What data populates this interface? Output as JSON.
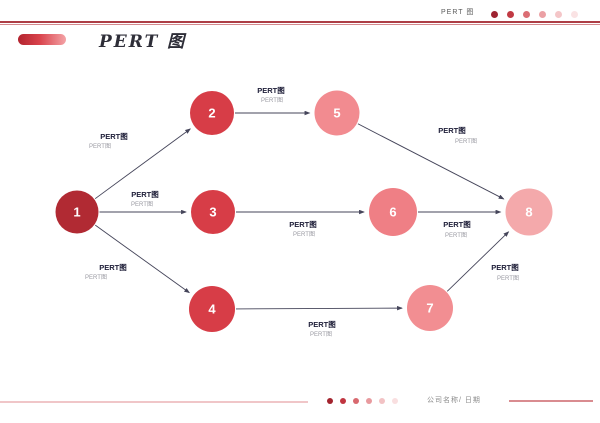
{
  "header": {
    "title": "PERT 图",
    "dot_colors": [
      "#9e2431",
      "#c13a43",
      "#db6e74",
      "#eba0a4",
      "#f4c6c8",
      "#fae3e4"
    ]
  },
  "title": {
    "text": "PERT 图"
  },
  "footer": {
    "company_label": "公司名称/ 日期",
    "dot_colors": [
      "#a3242e",
      "#c03540",
      "#d8696f",
      "#e89a9e",
      "#f2c2c4",
      "#f9dfe0"
    ]
  },
  "diagram": {
    "type": "pert-network",
    "edge_color": "#45455a",
    "label_color": "#20203a",
    "sublabel_color": "#9a9aa2",
    "nodes": [
      {
        "id": "1",
        "label": "1",
        "color": "#b12a33"
      },
      {
        "id": "2",
        "label": "2",
        "color": "#d73d47"
      },
      {
        "id": "3",
        "label": "3",
        "color": "#d73d47"
      },
      {
        "id": "4",
        "label": "4",
        "color": "#d73d47"
      },
      {
        "id": "5",
        "label": "5",
        "color": "#f28b90"
      },
      {
        "id": "6",
        "label": "6",
        "color": "#ef7f85"
      },
      {
        "id": "7",
        "label": "7",
        "color": "#f28e92"
      },
      {
        "id": "8",
        "label": "8",
        "color": "#f4a9ab"
      }
    ],
    "edges": [
      {
        "from": "1",
        "to": "2",
        "label": "PERT图",
        "sublabel": "PERT图"
      },
      {
        "from": "1",
        "to": "3",
        "label": "PERT图",
        "sublabel": "PERT图"
      },
      {
        "from": "1",
        "to": "4",
        "label": "PERT图",
        "sublabel": "PERT图"
      },
      {
        "from": "2",
        "to": "5",
        "label": "PERT图",
        "sublabel": "PERT图"
      },
      {
        "from": "3",
        "to": "6",
        "label": "PERT图",
        "sublabel": "PERT图"
      },
      {
        "from": "4",
        "to": "7",
        "label": "PERT图",
        "sublabel": "PERT图"
      },
      {
        "from": "5",
        "to": "8",
        "label": "PERT图",
        "sublabel": "PERT图"
      },
      {
        "from": "6",
        "to": "8",
        "label": "PERT图",
        "sublabel": "PERT图"
      },
      {
        "from": "7",
        "to": "8",
        "label": "PERT图",
        "sublabel": "PERT图"
      }
    ]
  }
}
